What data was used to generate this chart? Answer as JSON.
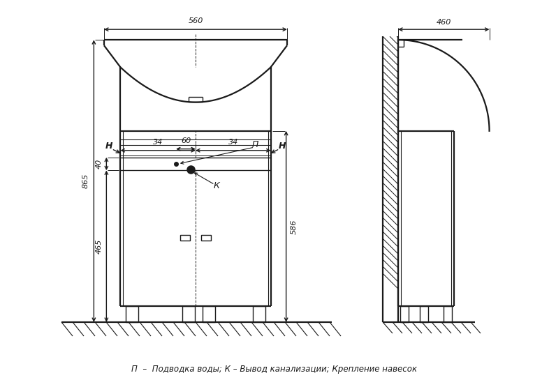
{
  "bg_color": "#ffffff",
  "line_color": "#1a1a1a",
  "fig_width": 7.86,
  "fig_height": 5.45,
  "caption": "П  –  Подводка воды; К – Вывод канализации; Крепление навесок",
  "dim_560": "560",
  "dim_460": "460",
  "dim_865": "865",
  "dim_465": "465",
  "dim_586": "586",
  "dim_40": "40",
  "dim_60": "60",
  "dim_34l": "34",
  "dim_34r": "34"
}
